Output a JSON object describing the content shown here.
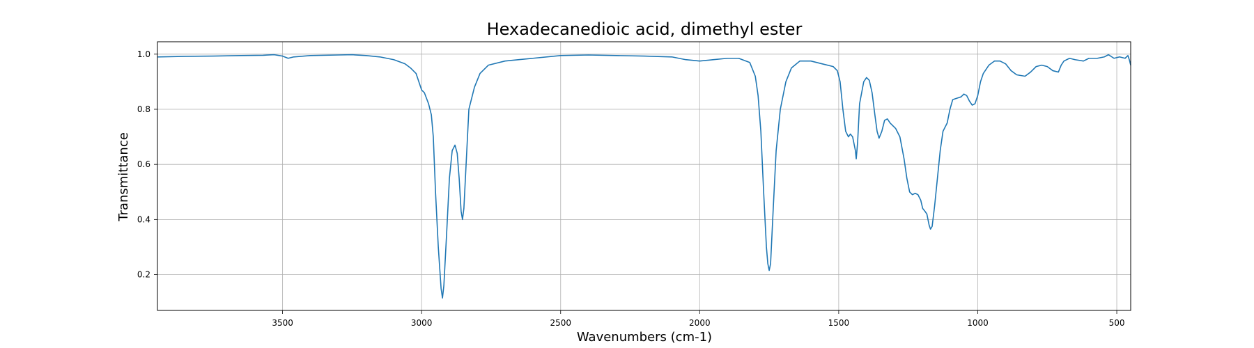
{
  "chart_data": {
    "type": "line",
    "title": "Hexadecanedioic acid, dimethyl ester",
    "xlabel": "Wavenumbers (cm-1)",
    "ylabel": "Transmittance",
    "x_reversed": true,
    "xlim": [
      3950,
      450
    ],
    "ylim": [
      0.07,
      1.045
    ],
    "xticks": [
      3500,
      3000,
      2500,
      2000,
      1500,
      1000,
      500
    ],
    "yticks": [
      0.2,
      0.4,
      0.6,
      0.8,
      1.0
    ],
    "ytick_labels": [
      "0.2",
      "0.4",
      "0.6",
      "0.8",
      "1.0"
    ],
    "grid": true,
    "series": [
      {
        "color": "#1f77b4",
        "points": [
          [
            3950,
            0.99
          ],
          [
            3850,
            0.992
          ],
          [
            3750,
            0.993
          ],
          [
            3650,
            0.995
          ],
          [
            3570,
            0.996
          ],
          [
            3530,
            0.998
          ],
          [
            3500,
            0.993
          ],
          [
            3480,
            0.985
          ],
          [
            3460,
            0.99
          ],
          [
            3400,
            0.995
          ],
          [
            3300,
            0.997
          ],
          [
            3250,
            0.998
          ],
          [
            3200,
            0.995
          ],
          [
            3150,
            0.99
          ],
          [
            3100,
            0.98
          ],
          [
            3060,
            0.965
          ],
          [
            3040,
            0.95
          ],
          [
            3020,
            0.93
          ],
          [
            3000,
            0.87
          ],
          [
            2990,
            0.86
          ],
          [
            2975,
            0.82
          ],
          [
            2965,
            0.78
          ],
          [
            2958,
            0.7
          ],
          [
            2950,
            0.5
          ],
          [
            2940,
            0.3
          ],
          [
            2930,
            0.15
          ],
          [
            2925,
            0.115
          ],
          [
            2920,
            0.16
          ],
          [
            2910,
            0.35
          ],
          [
            2900,
            0.55
          ],
          [
            2890,
            0.65
          ],
          [
            2880,
            0.67
          ],
          [
            2872,
            0.64
          ],
          [
            2865,
            0.55
          ],
          [
            2858,
            0.43
          ],
          [
            2853,
            0.4
          ],
          [
            2848,
            0.44
          ],
          [
            2840,
            0.6
          ],
          [
            2830,
            0.8
          ],
          [
            2810,
            0.88
          ],
          [
            2790,
            0.93
          ],
          [
            2760,
            0.96
          ],
          [
            2700,
            0.975
          ],
          [
            2650,
            0.98
          ],
          [
            2600,
            0.985
          ],
          [
            2500,
            0.995
          ],
          [
            2400,
            0.997
          ],
          [
            2300,
            0.995
          ],
          [
            2200,
            0.993
          ],
          [
            2100,
            0.99
          ],
          [
            2050,
            0.98
          ],
          [
            2000,
            0.975
          ],
          [
            1950,
            0.98
          ],
          [
            1900,
            0.985
          ],
          [
            1860,
            0.985
          ],
          [
            1820,
            0.97
          ],
          [
            1800,
            0.92
          ],
          [
            1790,
            0.85
          ],
          [
            1780,
            0.72
          ],
          [
            1770,
            0.5
          ],
          [
            1760,
            0.3
          ],
          [
            1755,
            0.24
          ],
          [
            1750,
            0.215
          ],
          [
            1745,
            0.24
          ],
          [
            1735,
            0.45
          ],
          [
            1725,
            0.65
          ],
          [
            1710,
            0.8
          ],
          [
            1690,
            0.9
          ],
          [
            1670,
            0.95
          ],
          [
            1640,
            0.975
          ],
          [
            1600,
            0.975
          ],
          [
            1560,
            0.965
          ],
          [
            1520,
            0.955
          ],
          [
            1505,
            0.94
          ],
          [
            1495,
            0.9
          ],
          [
            1485,
            0.8
          ],
          [
            1475,
            0.72
          ],
          [
            1465,
            0.7
          ],
          [
            1458,
            0.71
          ],
          [
            1450,
            0.7
          ],
          [
            1440,
            0.65
          ],
          [
            1437,
            0.62
          ],
          [
            1432,
            0.68
          ],
          [
            1425,
            0.82
          ],
          [
            1410,
            0.9
          ],
          [
            1400,
            0.915
          ],
          [
            1390,
            0.905
          ],
          [
            1380,
            0.86
          ],
          [
            1370,
            0.78
          ],
          [
            1362,
            0.72
          ],
          [
            1355,
            0.695
          ],
          [
            1345,
            0.72
          ],
          [
            1335,
            0.76
          ],
          [
            1325,
            0.765
          ],
          [
            1315,
            0.75
          ],
          [
            1295,
            0.73
          ],
          [
            1280,
            0.7
          ],
          [
            1265,
            0.62
          ],
          [
            1255,
            0.55
          ],
          [
            1245,
            0.5
          ],
          [
            1235,
            0.49
          ],
          [
            1225,
            0.495
          ],
          [
            1215,
            0.49
          ],
          [
            1205,
            0.47
          ],
          [
            1198,
            0.44
          ],
          [
            1190,
            0.43
          ],
          [
            1183,
            0.42
          ],
          [
            1175,
            0.38
          ],
          [
            1170,
            0.365
          ],
          [
            1164,
            0.375
          ],
          [
            1155,
            0.45
          ],
          [
            1145,
            0.55
          ],
          [
            1135,
            0.65
          ],
          [
            1125,
            0.72
          ],
          [
            1110,
            0.75
          ],
          [
            1100,
            0.8
          ],
          [
            1090,
            0.835
          ],
          [
            1075,
            0.84
          ],
          [
            1060,
            0.845
          ],
          [
            1050,
            0.855
          ],
          [
            1040,
            0.85
          ],
          [
            1030,
            0.83
          ],
          [
            1020,
            0.815
          ],
          [
            1010,
            0.82
          ],
          [
            1000,
            0.85
          ],
          [
            990,
            0.9
          ],
          [
            980,
            0.93
          ],
          [
            960,
            0.96
          ],
          [
            940,
            0.975
          ],
          [
            920,
            0.975
          ],
          [
            900,
            0.965
          ],
          [
            880,
            0.94
          ],
          [
            860,
            0.925
          ],
          [
            830,
            0.92
          ],
          [
            810,
            0.935
          ],
          [
            790,
            0.955
          ],
          [
            770,
            0.96
          ],
          [
            750,
            0.955
          ],
          [
            730,
            0.94
          ],
          [
            710,
            0.935
          ],
          [
            700,
            0.96
          ],
          [
            690,
            0.975
          ],
          [
            670,
            0.985
          ],
          [
            650,
            0.98
          ],
          [
            620,
            0.975
          ],
          [
            600,
            0.985
          ],
          [
            570,
            0.985
          ],
          [
            545,
            0.99
          ],
          [
            530,
            0.998
          ],
          [
            510,
            0.985
          ],
          [
            490,
            0.99
          ],
          [
            470,
            0.985
          ],
          [
            460,
            0.995
          ],
          [
            455,
            0.98
          ],
          [
            450,
            0.96
          ]
        ]
      }
    ]
  }
}
